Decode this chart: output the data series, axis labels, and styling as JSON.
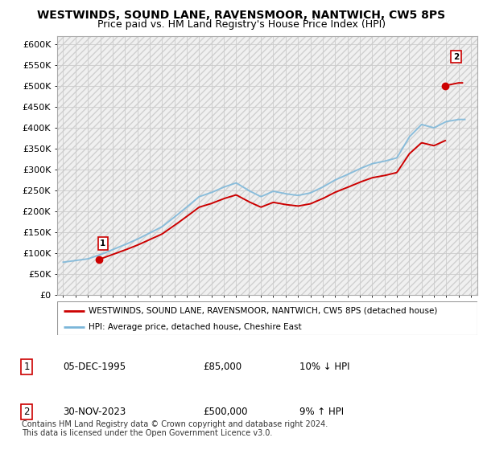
{
  "title": "WESTWINDS, SOUND LANE, RAVENSMOOR, NANTWICH, CW5 8PS",
  "subtitle": "Price paid vs. HM Land Registry's House Price Index (HPI)",
  "ylim": [
    0,
    620000
  ],
  "yticks": [
    0,
    50000,
    100000,
    150000,
    200000,
    250000,
    300000,
    350000,
    400000,
    450000,
    500000,
    550000,
    600000
  ],
  "ytick_labels": [
    "£0",
    "£50K",
    "£100K",
    "£150K",
    "£200K",
    "£250K",
    "£300K",
    "£350K",
    "£400K",
    "£450K",
    "£500K",
    "£550K",
    "£600K"
  ],
  "xlim_start": 1992.5,
  "xlim_end": 2026.5,
  "sale1_x": 1995.92,
  "sale1_y": 85000,
  "sale2_x": 2023.91,
  "sale2_y": 500000,
  "hpi_color": "#7ab6d9",
  "sale_line_color": "#cc0000",
  "marker_color": "#cc0000",
  "legend_line1": "WESTWINDS, SOUND LANE, RAVENSMOOR, NANTWICH, CW5 8PS (detached house)",
  "legend_line2": "HPI: Average price, detached house, Cheshire East",
  "table_row1": [
    "1",
    "05-DEC-1995",
    "£85,000",
    "10% ↓ HPI"
  ],
  "table_row2": [
    "2",
    "30-NOV-2023",
    "£500,000",
    "9% ↑ HPI"
  ],
  "footnote": "Contains HM Land Registry data © Crown copyright and database right 2024.\nThis data is licensed under the Open Government Licence v3.0.",
  "grid_color": "#cccccc",
  "title_fontsize": 10,
  "subtitle_fontsize": 9,
  "hpi_years": [
    1993,
    1994,
    1995,
    1996,
    1997,
    1998,
    1999,
    2000,
    2001,
    2002,
    2003,
    2004,
    2005,
    2006,
    2007,
    2008,
    2009,
    2010,
    2011,
    2012,
    2013,
    2014,
    2015,
    2016,
    2017,
    2018,
    2019,
    2020,
    2021,
    2022,
    2023,
    2024,
    2025
  ],
  "hpi_values": [
    78000,
    82000,
    86000,
    96000,
    108000,
    120000,
    133000,
    148000,
    163000,
    186000,
    210000,
    235000,
    245000,
    258000,
    268000,
    250000,
    235000,
    248000,
    242000,
    238000,
    244000,
    258000,
    275000,
    288000,
    302000,
    314000,
    320000,
    328000,
    378000,
    408000,
    400000,
    415000,
    420000
  ]
}
